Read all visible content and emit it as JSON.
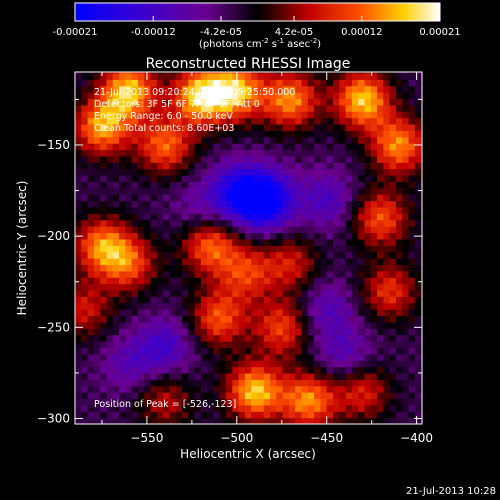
{
  "colorbar": {
    "ticks": [
      "-0.00021",
      "-0.00012",
      "-4.2e-05",
      "4.2e-05",
      "0.00012",
      "0.00021"
    ],
    "tick_values": [
      -0.00021,
      -0.00012,
      -4.2e-05,
      4.2e-05,
      0.00012,
      0.00021
    ],
    "range": [
      -0.00021,
      0.00021
    ],
    "unit_main": "(photons cm",
    "unit_exp1": "-2",
    "unit_mid": " s",
    "unit_exp2": "-1",
    "unit_tail": " asec",
    "unit_exp3": "-2",
    "unit_close": ")",
    "colors": [
      "#0000ff",
      "#3a00d0",
      "#6a0090",
      "#000000",
      "#c00000",
      "#ff5000",
      "#ffd000",
      "#ffffff"
    ]
  },
  "chart_data": {
    "type": "heatmap",
    "title": "Reconstructed RHESSI Image",
    "xlabel": "Heliocentric X (arcsec)",
    "ylabel": "Heliocentric Y (arcsec)",
    "xlim": [
      -590,
      -397
    ],
    "ylim": [
      -303,
      -110
    ],
    "x_ticks": [
      -550,
      -500,
      -450,
      -400
    ],
    "x_tick_labels": [
      "−550",
      "−500",
      "−450",
      "−400"
    ],
    "y_ticks": [
      -150,
      -200,
      -250,
      -300
    ],
    "y_tick_labels": [
      "−150",
      "−200",
      "−250",
      "−300"
    ],
    "regions": [
      {
        "x": -575,
        "y": -140,
        "value": 0.00018
      },
      {
        "x": -560,
        "y": -120,
        "value": 0.0002
      },
      {
        "x": -540,
        "y": -150,
        "value": 0.00015
      },
      {
        "x": -520,
        "y": -123,
        "value": 0.00021
      },
      {
        "x": -500,
        "y": -120,
        "value": 0.00019
      },
      {
        "x": -470,
        "y": -125,
        "value": 0.00017
      },
      {
        "x": -430,
        "y": -125,
        "value": 0.0002
      },
      {
        "x": -410,
        "y": -150,
        "value": 0.00017
      },
      {
        "x": -420,
        "y": -190,
        "value": 0.00014
      },
      {
        "x": -415,
        "y": -230,
        "value": 0.00012
      },
      {
        "x": -575,
        "y": -205,
        "value": 0.00016
      },
      {
        "x": -560,
        "y": -215,
        "value": 0.00013
      },
      {
        "x": -585,
        "y": -240,
        "value": 0.0001
      },
      {
        "x": -515,
        "y": -205,
        "value": 0.00015
      },
      {
        "x": -495,
        "y": -220,
        "value": 0.00012
      },
      {
        "x": -470,
        "y": -215,
        "value": 0.0001
      },
      {
        "x": -510,
        "y": -245,
        "value": 0.00014
      },
      {
        "x": -475,
        "y": -250,
        "value": 0.00013
      },
      {
        "x": -490,
        "y": -285,
        "value": 0.0002
      },
      {
        "x": -460,
        "y": -290,
        "value": 0.00017
      },
      {
        "x": -540,
        "y": -290,
        "value": 9e-05
      },
      {
        "x": -430,
        "y": -285,
        "value": 0.00011
      },
      {
        "x": -485,
        "y": -180,
        "value": -0.00021
      },
      {
        "x": -500,
        "y": -175,
        "value": -0.00012
      },
      {
        "x": -450,
        "y": -180,
        "value": -8e-05
      },
      {
        "x": -540,
        "y": -260,
        "value": -9e-05
      },
      {
        "x": -450,
        "y": -240,
        "value": -7e-05
      },
      {
        "x": -560,
        "y": -270,
        "value": -6e-05
      },
      {
        "x": -440,
        "y": -265,
        "value": -7e-05
      },
      {
        "x": -520,
        "y": -185,
        "value": -5e-05
      }
    ],
    "annotations": {
      "line1": "21-Jul-2013 09:20:24.000 to 09:25:50.000",
      "line2": "Detectors: 3F 5F 6F 7F 8F 9F; Att 0",
      "line3": "Energy Range: 6.0 - 50.0 keV",
      "line4": "Clean    Total counts: 8.60E+03",
      "peak": "Position of Peak = [-526,-123]"
    }
  },
  "footer": {
    "timestamp": "21-Jul-2013 10:28"
  }
}
